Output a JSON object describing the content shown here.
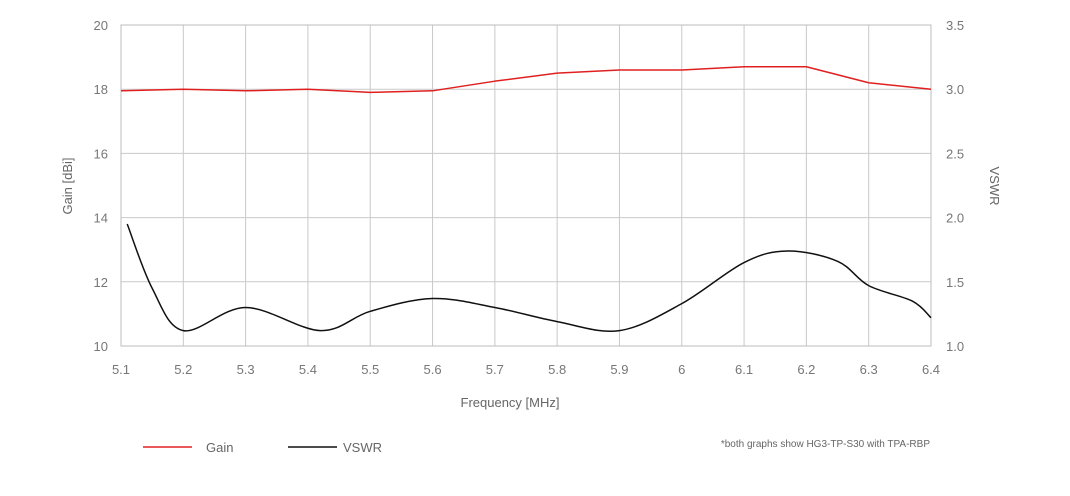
{
  "chart_data": {
    "type": "line",
    "xlabel": "Frequency [MHz]",
    "ylabel": "Gain [dBi]",
    "y2label": "VSWR",
    "xlim": [
      5.1,
      6.4
    ],
    "ylim": [
      10,
      20
    ],
    "y2lim": [
      1.0,
      3.5
    ],
    "x_ticks": [
      "5.1",
      "5.2",
      "5.3",
      "5.4",
      "5.5",
      "5.6",
      "5.7",
      "5.8",
      "5.9",
      "6",
      "6.1",
      "6.2",
      "6.3",
      "6.4"
    ],
    "y_ticks": [
      "20",
      "18",
      "16",
      "14",
      "12",
      "10"
    ],
    "y2_ticks": [
      "3.5",
      "3.0",
      "2.5",
      "2.0",
      "1.5",
      "1.0"
    ],
    "grid": true,
    "series": [
      {
        "name": "Gain",
        "axis": "left",
        "color": "#e02020",
        "x": [
          5.1,
          5.2,
          5.3,
          5.4,
          5.5,
          5.6,
          5.7,
          5.8,
          5.9,
          6.0,
          6.1,
          6.2,
          6.3,
          6.4
        ],
        "values": [
          17.95,
          18.0,
          17.95,
          18.0,
          17.9,
          17.95,
          18.25,
          18.5,
          18.6,
          18.6,
          18.7,
          18.7,
          18.2,
          18.0
        ]
      },
      {
        "name": "VSWR",
        "axis": "right",
        "color": "#111111",
        "x": [
          5.11,
          5.15,
          5.2,
          5.3,
          5.42,
          5.5,
          5.6,
          5.7,
          5.8,
          5.9,
          6.0,
          6.1,
          6.17,
          6.25,
          6.3,
          6.37,
          6.4
        ],
        "values": [
          1.95,
          1.45,
          1.12,
          1.3,
          1.12,
          1.27,
          1.37,
          1.3,
          1.19,
          1.12,
          1.33,
          1.65,
          1.74,
          1.66,
          1.47,
          1.35,
          1.22
        ]
      }
    ],
    "legend_position": "bottom-left",
    "note": "*both graphs show HG3-TP-S30 with TPA-RBP"
  }
}
